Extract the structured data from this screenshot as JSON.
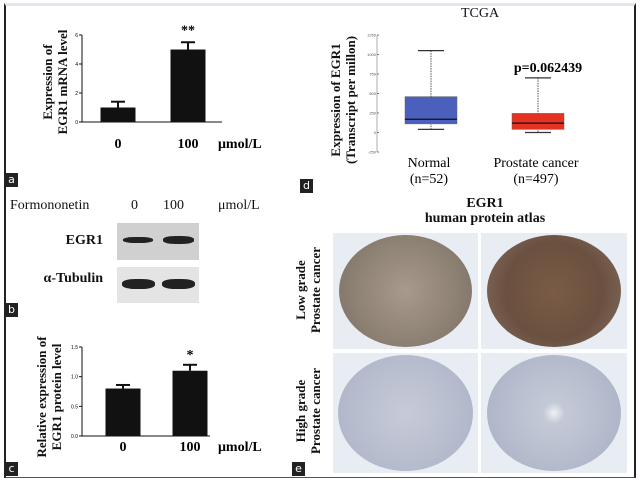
{
  "panels": {
    "a": "a",
    "b": "b",
    "c": "c",
    "d": "d",
    "e": "e"
  },
  "chart_data": [
    {
      "id": "a",
      "type": "bar",
      "categories": [
        "0",
        "100"
      ],
      "values": [
        1.0,
        5.0
      ],
      "errors": [
        0.4,
        0.5
      ],
      "ylabel_lines": [
        "Expression of",
        "EGR1 mRNA level"
      ],
      "unit": "μmol/L",
      "ylim": [
        0,
        6
      ],
      "yticks": [
        "0",
        "2",
        "4",
        "6"
      ],
      "significance": [
        "",
        "**"
      ],
      "bar_color": "#111111"
    },
    {
      "id": "c",
      "type": "bar",
      "categories": [
        "0",
        "100"
      ],
      "values": [
        0.8,
        1.1
      ],
      "errors": [
        0.06,
        0.1
      ],
      "ylabel_lines": [
        "Relative expression of",
        "EGR1 protein level"
      ],
      "unit": "μmol/L",
      "ylim": [
        0,
        1.5
      ],
      "yticks": [
        "0.0",
        "0.5",
        "1.0",
        "1.5"
      ],
      "significance": [
        "",
        "*"
      ],
      "bar_color": "#111111"
    },
    {
      "id": "d",
      "type": "box",
      "title": "TCGA",
      "ylabel_lines": [
        "Expression of EGR1",
        "(Transcript per millon)"
      ],
      "ylim": [
        -250,
        1250
      ],
      "yticks": [
        "-250",
        "0",
        "250",
        "500",
        "750",
        "1000",
        "1250"
      ],
      "annotation": "p=0.062439",
      "series": [
        {
          "category": "Normal",
          "n_label": "(n=52)",
          "min": 40,
          "q1": 110,
          "median": 170,
          "q3": 460,
          "max": 1050,
          "color": "#4b5fbd"
        },
        {
          "category": "Prostate cancer",
          "n_label": "(n=497)",
          "min": 0,
          "q1": 40,
          "median": 120,
          "q3": 245,
          "max": 700,
          "color": "#e53323"
        }
      ]
    }
  ],
  "western_blot": {
    "treatment": "Formononetin",
    "doses": [
      "0",
      "100"
    ],
    "unit": "μmol/L",
    "rows": [
      "EGR1",
      "α-Tubulin"
    ]
  },
  "ihc": {
    "title": "EGR1",
    "subtitle": "human protein atlas",
    "rows": [
      [
        "Low grade",
        "Prostate cancer"
      ],
      [
        "High grade",
        "Prostate cancer"
      ]
    ]
  }
}
